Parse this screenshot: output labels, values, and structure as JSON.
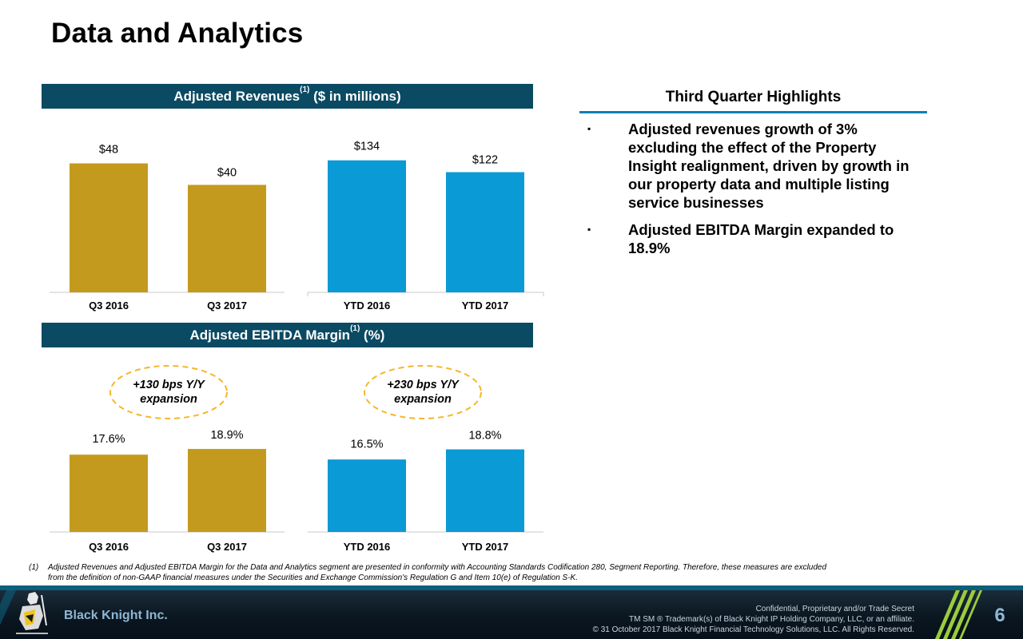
{
  "page": {
    "title": "Data and Analytics"
  },
  "revenue_section": {
    "header": "Adjusted Revenues",
    "header_sup": "(1)",
    "header_suffix": " ($ in millions)"
  },
  "ebitda_section": {
    "header": "Adjusted EBITDA Margin",
    "header_sup": "(1)",
    "header_suffix": " (%)"
  },
  "chart_data": [
    {
      "type": "bar",
      "title": "Adjusted Revenues ($ in millions)",
      "categories": [
        "Q3 2016",
        "Q3 2017",
        "YTD 2016",
        "YTD 2017"
      ],
      "values": [
        48,
        40,
        134,
        122
      ],
      "value_labels": [
        "$48",
        "$40",
        "$134",
        "$122"
      ],
      "groups": [
        {
          "name": "quarter",
          "indices": [
            0,
            1
          ],
          "color": "#c49a1e",
          "ylim": [
            0,
            55
          ]
        },
        {
          "name": "ytd",
          "indices": [
            2,
            3
          ],
          "color": "#0a9ad6",
          "ylim": [
            0,
            150
          ]
        }
      ],
      "xlabel": "",
      "ylabel": "",
      "grid": false,
      "legend": "none"
    },
    {
      "type": "bar",
      "title": "Adjusted EBITDA Margin (%)",
      "categories": [
        "Q3 2016",
        "Q3 2017",
        "YTD 2016",
        "YTD 2017"
      ],
      "values": [
        17.6,
        18.9,
        16.5,
        18.8
      ],
      "value_labels": [
        "17.6%",
        "18.9%",
        "16.5%",
        "18.8%"
      ],
      "groups": [
        {
          "name": "quarter",
          "indices": [
            0,
            1
          ],
          "color": "#c49a1e",
          "ylim": [
            0,
            30
          ]
        },
        {
          "name": "ytd",
          "indices": [
            2,
            3
          ],
          "color": "#0a9ad6",
          "ylim": [
            0,
            30
          ]
        }
      ],
      "annotations": [
        {
          "group": "quarter",
          "lines": [
            "+130 bps Y/Y",
            "expansion"
          ]
        },
        {
          "group": "ytd",
          "lines": [
            "+230 bps Y/Y",
            "expansion"
          ]
        }
      ],
      "xlabel": "",
      "ylabel": "",
      "grid": false,
      "legend": "none"
    }
  ],
  "highlights": {
    "heading": "Third Quarter Highlights",
    "bullet_symbol": "▪",
    "items": [
      "Adjusted revenues growth of 3% excluding the effect of the Property Insight realignment, driven by growth in our property data and multiple listing service businesses",
      "Adjusted EBITDA Margin expanded to 18.9%"
    ]
  },
  "footnote": {
    "number": "(1)",
    "text": "Adjusted Revenues and Adjusted EBITDA Margin for the Data and Analytics segment are presented in conformity with Accounting Standards Codification 280, Segment Reporting. Therefore, these measures are excluded from the definition of non-GAAP financial measures under the Securities and Exchange Commission's Regulation G and Item 10(e) of Regulation S-K."
  },
  "footer": {
    "brand": "Black Knight Inc.",
    "confidential": "Confidential, Proprietary and/or Trade Secret",
    "trademark": "TM SM ® Trademark(s) of Black Knight IP Holding Company, LLC, or an affiliate.",
    "copyright": "© 31 October 2017 Black Knight Financial Technology Solutions, LLC. All Rights Reserved.",
    "page_number": "6",
    "colors": {
      "accent": "#0e5f7c",
      "stripe": "#9ccc3c"
    }
  }
}
